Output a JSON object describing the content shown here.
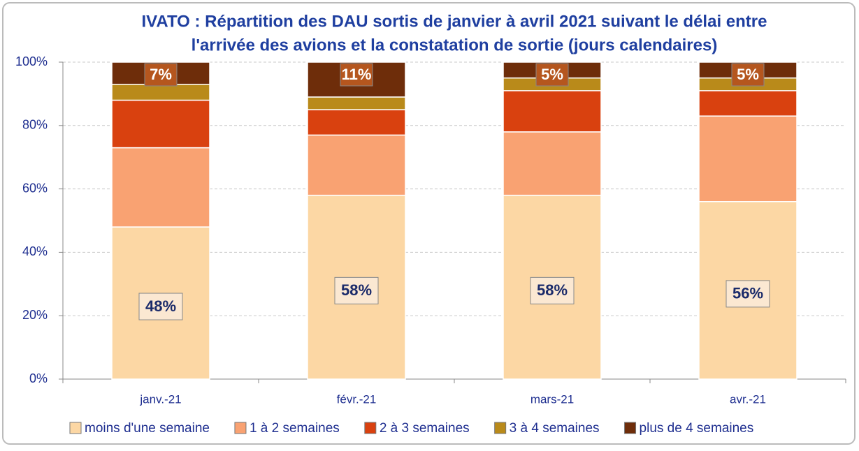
{
  "chart_data": {
    "type": "stacked_bar",
    "title": [
      "IVATO : Répartition des DAU sortis de janvier à avril 2021 suivant le délai entre",
      "l'arrivée des avions et la constatation de sortie (jours calendaires)"
    ],
    "categories": [
      "janv.-21",
      "févr.-21",
      "mars-21",
      "avr.-21"
    ],
    "series": [
      {
        "name": "moins d'une semaine",
        "color": "#fcd7a4",
        "values": [
          48,
          58,
          58,
          56
        ],
        "value_labels": [
          "48%",
          "58%",
          "58%",
          "56%"
        ]
      },
      {
        "name": "1 à 2 semaines",
        "color": "#f9a272",
        "values": [
          25,
          19,
          20,
          27
        ]
      },
      {
        "name": "2 à 3 semaines",
        "color": "#d9410f",
        "values": [
          15,
          8,
          13,
          8
        ]
      },
      {
        "name": "3 à 4 semaines",
        "color": "#b98a1a",
        "values": [
          5,
          4,
          4,
          4
        ]
      },
      {
        "name": "plus de 4 semaines",
        "color": "#6e2d0a",
        "values": [
          7,
          11,
          5,
          5
        ],
        "value_labels": [
          "7%",
          "11%",
          "5%",
          "5%"
        ]
      }
    ],
    "ylim": [
      0,
      100
    ],
    "yticks": [
      {
        "value": 0,
        "label": "0%"
      },
      {
        "value": 20,
        "label": "20%"
      },
      {
        "value": 40,
        "label": "40%"
      },
      {
        "value": 60,
        "label": "60%"
      },
      {
        "value": 80,
        "label": "80%"
      },
      {
        "value": 100,
        "label": "100%"
      }
    ],
    "grid": true,
    "legend": "bottom"
  }
}
